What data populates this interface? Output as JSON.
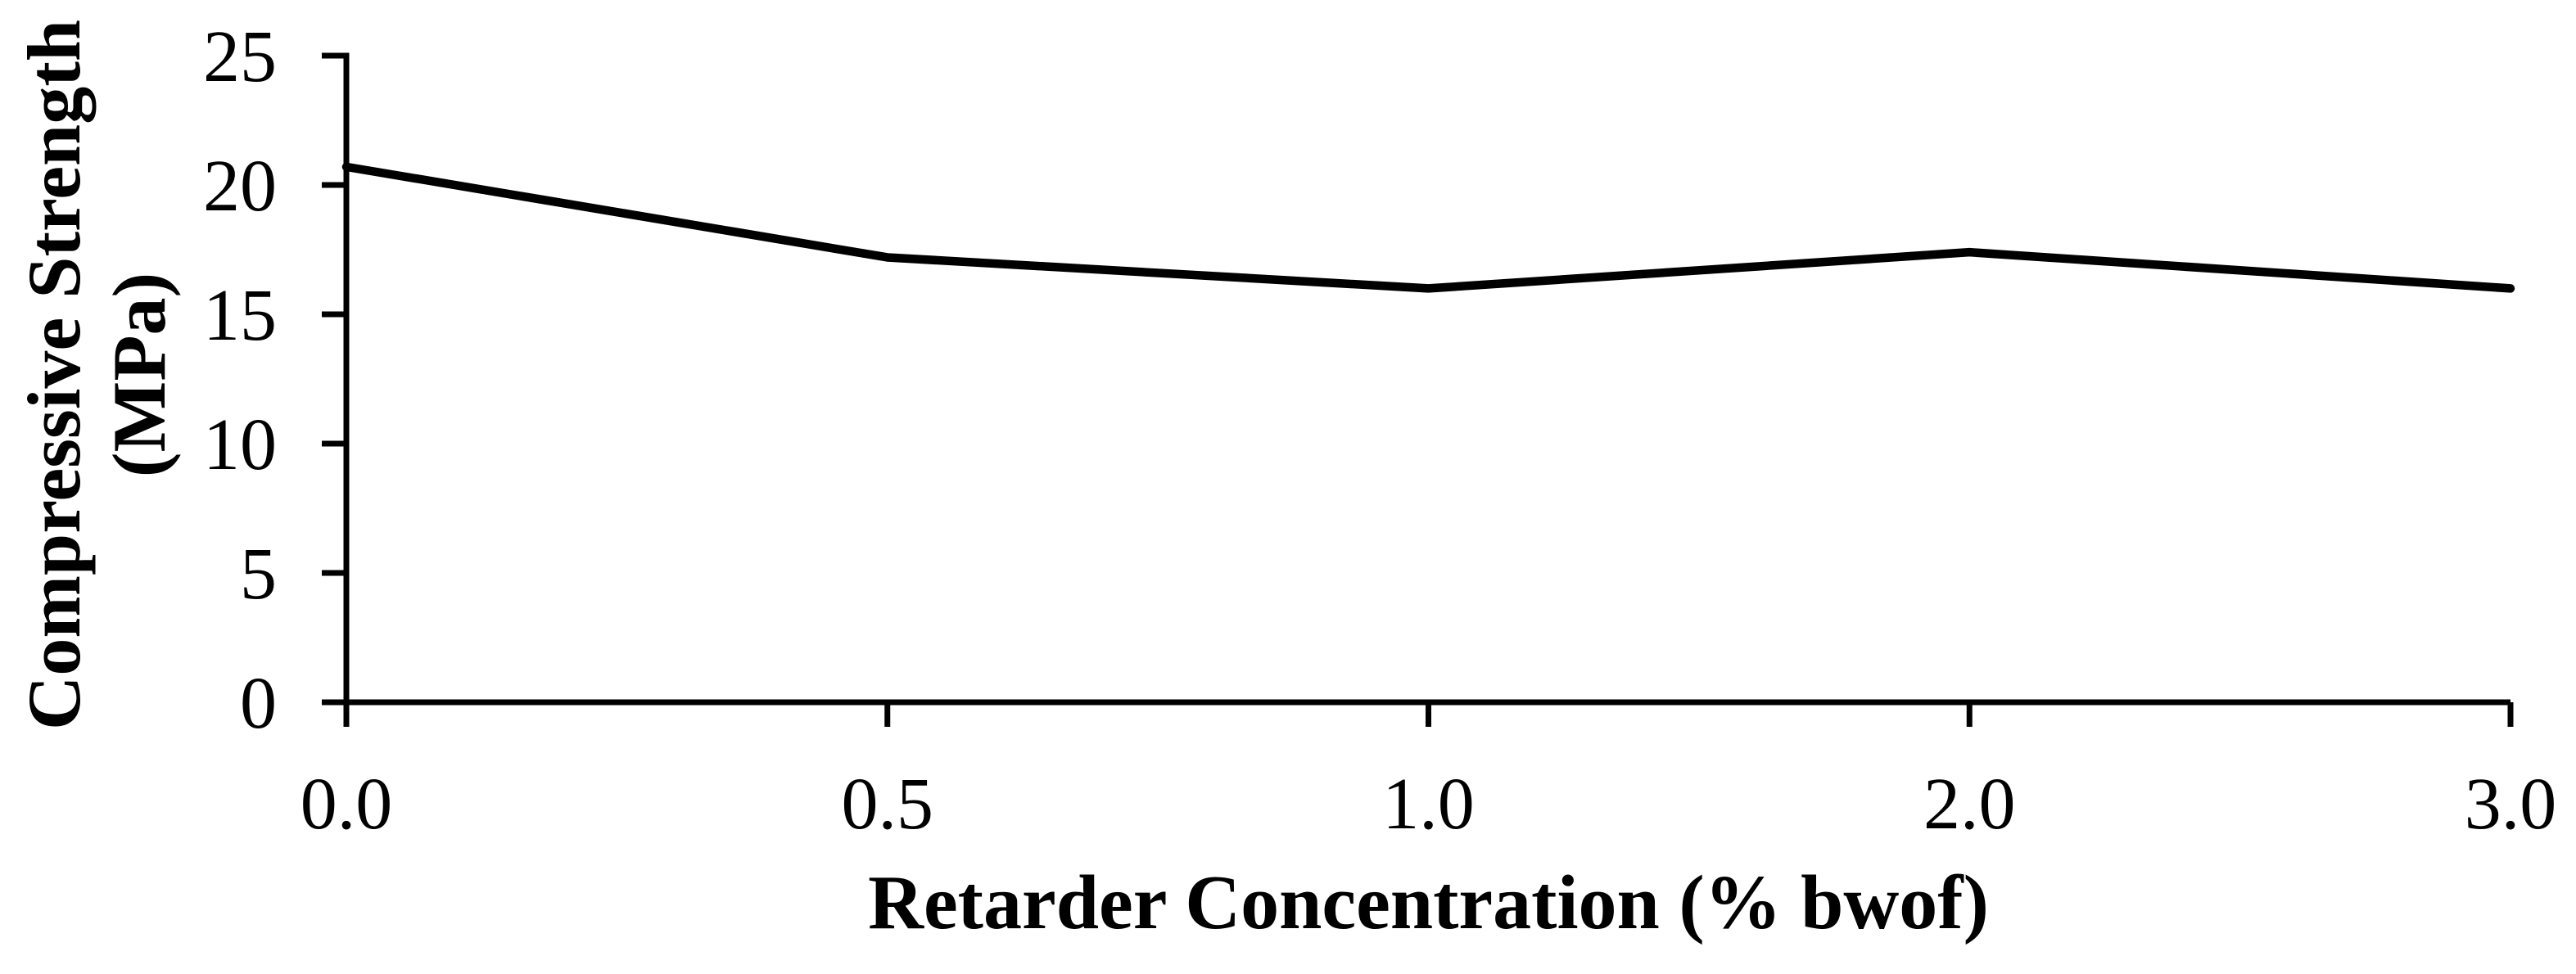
{
  "chart_data": {
    "type": "line",
    "title": "",
    "xlabel": "Retarder Concentration (% bwof)",
    "ylabel": "Compressive Strength (MPa)",
    "ylabel_lines": [
      "Compressive Strength",
      "(MPa)"
    ],
    "categories": [
      "0.0",
      "0.5",
      "1.0",
      "2.0",
      "3.0"
    ],
    "values": [
      20.7,
      17.2,
      16.0,
      17.4,
      16.0
    ],
    "y_ticks": [
      0,
      5,
      10,
      15,
      20,
      25
    ],
    "ylim": [
      0,
      25
    ],
    "x_axis_spacing": "categorical-even",
    "grid": false,
    "legend": "none",
    "markers": "none",
    "line_color": "#000000",
    "axis_color": "#000000",
    "background_color": "#ffffff"
  }
}
